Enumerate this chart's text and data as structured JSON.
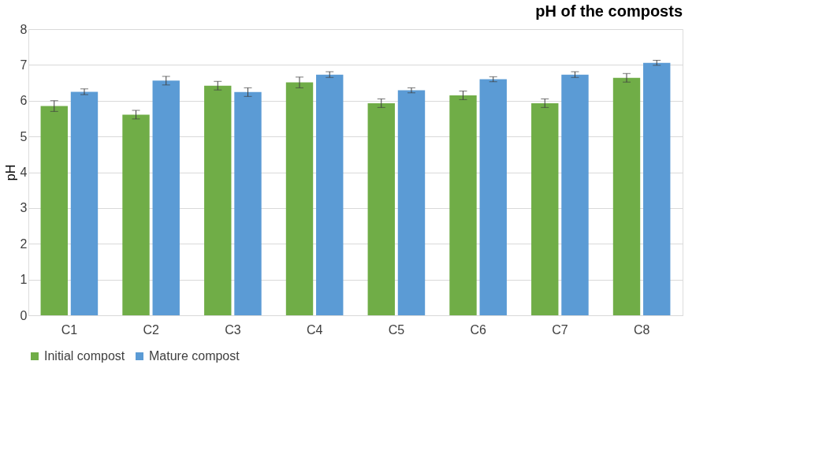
{
  "chart_data": {
    "type": "bar",
    "title": "pH of the composts",
    "ylabel": "pH",
    "categories": [
      "C1",
      "C2",
      "C3",
      "C4",
      "C5",
      "C6",
      "C7",
      "C8"
    ],
    "series": [
      {
        "name": "Initial compost",
        "color": "#70ad47",
        "values": [
          5.85,
          5.61,
          6.42,
          6.51,
          5.93,
          6.15,
          5.93,
          6.64
        ],
        "errors": [
          0.15,
          0.12,
          0.12,
          0.15,
          0.12,
          0.12,
          0.12,
          0.12
        ]
      },
      {
        "name": "Mature compost",
        "color": "#5b9bd5",
        "values": [
          6.25,
          6.56,
          6.24,
          6.73,
          6.29,
          6.6,
          6.73,
          7.06
        ],
        "errors": [
          0.08,
          0.12,
          0.12,
          0.08,
          0.07,
          0.07,
          0.08,
          0.07
        ]
      }
    ],
    "ylim": [
      0,
      8
    ],
    "yticks": [
      0,
      1,
      2,
      3,
      4,
      5,
      6,
      7,
      8
    ],
    "grid": "y",
    "legend": "bottom"
  }
}
